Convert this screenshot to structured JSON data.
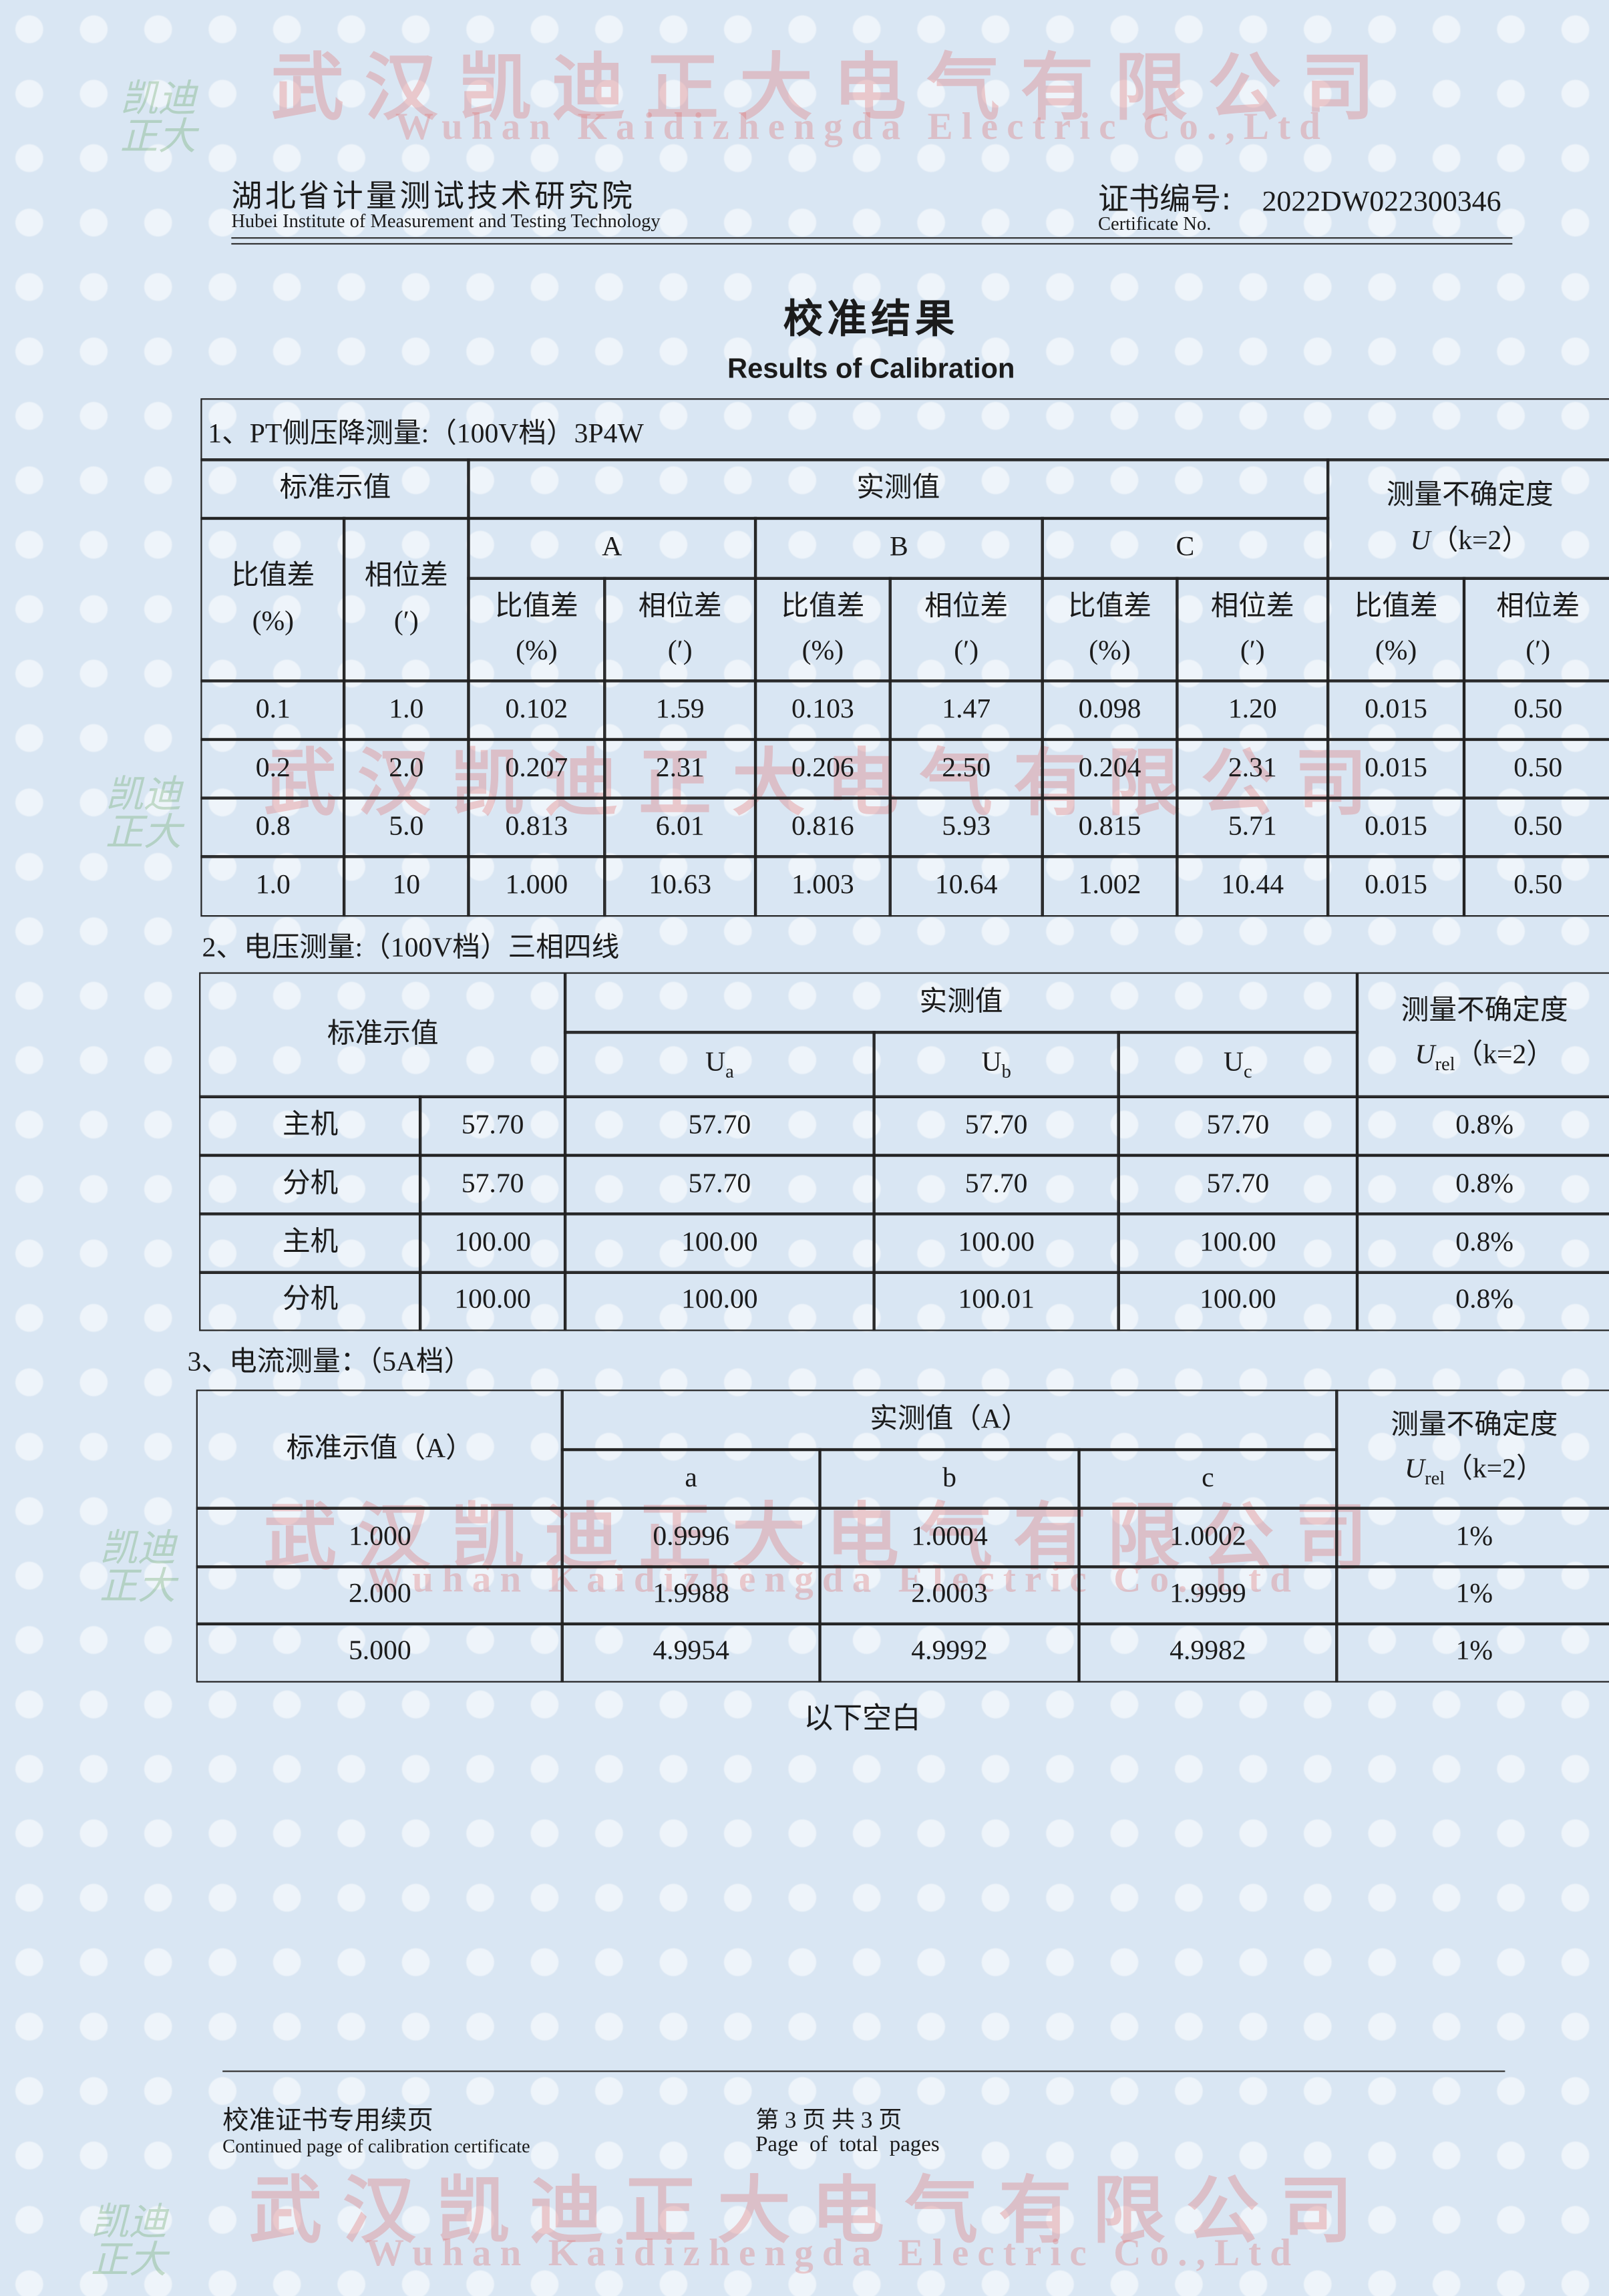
{
  "header": {
    "institute_cn": "湖北省计量测试技术研究院",
    "institute_en": "Hubei Institute of Measurement and Testing Technology",
    "cert_label_cn": "证书编号:",
    "cert_label_en": "Certificate No.",
    "cert_no": "2022DW022300346"
  },
  "title": {
    "cn": "校准结果",
    "en": "Results of Calibration"
  },
  "watermark": {
    "cn": "武汉凯迪正大电气有限公司",
    "en": "Wuhan Kaidizhengda Electric Co.,Ltd",
    "logo": "凯迪正大"
  },
  "section1": {
    "heading": "1、PT侧压降测量:（100V档）3P4W",
    "std": "标准示值",
    "measured": "实测值",
    "uncertainty": "测量不确定度",
    "u_symbol": "U",
    "u_suffix": "（k=2）",
    "ratio": "比值差",
    "phase": "相位差",
    "pct": "(%)",
    "min": "(′)",
    "phases": [
      "A",
      "B",
      "C"
    ],
    "rows": [
      [
        "0.1",
        "1.0",
        "0.102",
        "1.59",
        "0.103",
        "1.47",
        "0.098",
        "1.20",
        "0.015",
        "0.50"
      ],
      [
        "0.2",
        "2.0",
        "0.207",
        "2.31",
        "0.206",
        "2.50",
        "0.204",
        "2.31",
        "0.015",
        "0.50"
      ],
      [
        "0.8",
        "5.0",
        "0.813",
        "6.01",
        "0.816",
        "5.93",
        "0.815",
        "5.71",
        "0.015",
        "0.50"
      ],
      [
        "1.0",
        "10",
        "1.000",
        "10.63",
        "1.003",
        "10.64",
        "1.002",
        "10.44",
        "0.015",
        "0.50"
      ]
    ]
  },
  "section2": {
    "heading": "2、电压测量:（100V档）三相四线",
    "std": "标准示值",
    "measured": "实测值",
    "uncertainty": "测量不确定度",
    "u_symbol": "U",
    "u_sub": "rel",
    "u_suffix": "（k=2）",
    "symbol": "U",
    "subs": [
      "a",
      "b",
      "c"
    ],
    "rows": [
      [
        "主机",
        "57.70",
        "57.70",
        "57.70",
        "57.70",
        "0.8%"
      ],
      [
        "分机",
        "57.70",
        "57.70",
        "57.70",
        "57.70",
        "0.8%"
      ],
      [
        "主机",
        "100.00",
        "100.00",
        "100.00",
        "100.00",
        "0.8%"
      ],
      [
        "分机",
        "100.00",
        "100.00",
        "100.01",
        "100.00",
        "0.8%"
      ]
    ]
  },
  "section3": {
    "heading": "3、电流测量：（5A档）",
    "std": "标准示值（A）",
    "measured": "实测值（A）",
    "uncertainty": "测量不确定度",
    "u_symbol": "U",
    "u_sub": "rel",
    "u_suffix": "（k=2）",
    "phases": [
      "a",
      "b",
      "c"
    ],
    "rows": [
      [
        "1.000",
        "0.9996",
        "1.0004",
        "1.0002",
        "1%"
      ],
      [
        "2.000",
        "1.9988",
        "2.0003",
        "1.9999",
        "1%"
      ],
      [
        "5.000",
        "4.9954",
        "4.9992",
        "4.9982",
        "1%"
      ]
    ]
  },
  "blank_note": "以下空白",
  "footer": {
    "cn": "校准证书专用续页",
    "en": "Continued page of calibration certificate",
    "page_cn": "第 3 页 共 3 页",
    "page_en": "Page of total pages"
  }
}
